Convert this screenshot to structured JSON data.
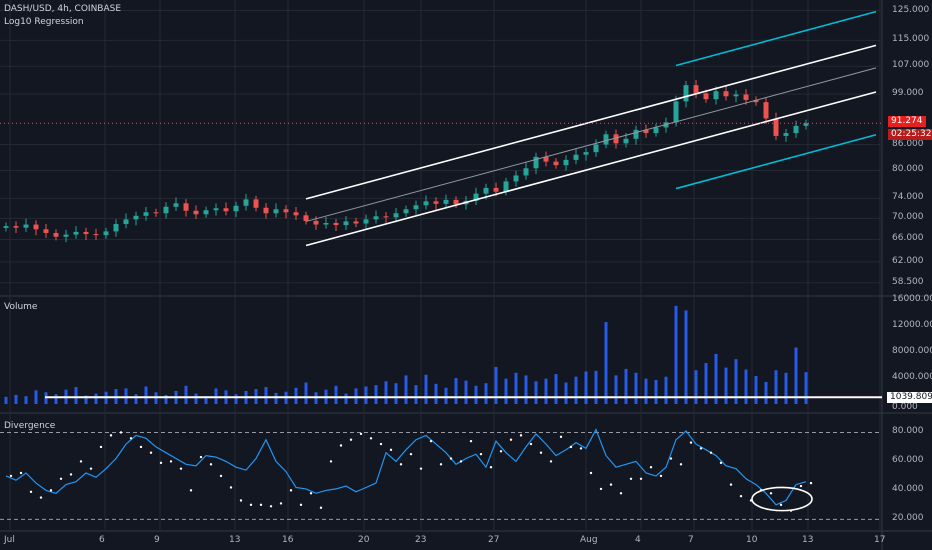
{
  "header": {
    "symbol_line": "DASH/USD, 4h, COINBASE",
    "indicator": "Log10 Regression"
  },
  "colors": {
    "background": "#131722",
    "grid": "#242832",
    "up": "#26a69a",
    "down": "#ef5350",
    "channel_inner": "#ffffff",
    "channel_outer": "#00bcd4",
    "volume": "#2962ff",
    "divergence": "#2196f3",
    "dots": "#ffffff",
    "badge_red": "#e52020"
  },
  "panes": {
    "volume_title": "Volume",
    "divergence_title": "Divergence"
  },
  "price_badges": {
    "last_price": "91.274",
    "countdown": "02:25:32"
  },
  "volume_badge": "1039.809",
  "chart_data": [
    {
      "type": "candlestick",
      "title": "DASH/USD, 4h, COINBASE",
      "y_scale": "log",
      "y_ticks": [
        "125.000",
        "115.000",
        "107.000",
        "99.000",
        "91.274",
        "86.000",
        "80.000",
        "74.000",
        "70.000",
        "66.000",
        "62.000",
        "58.500"
      ],
      "x_ticks": [
        "Jul",
        "6",
        "9",
        "13",
        "16",
        "20",
        "23",
        "27",
        "Aug",
        "4",
        "7",
        "10",
        "13",
        "17"
      ],
      "ylim": [
        57,
        128
      ],
      "close_path": [
        [
          0,
          68.5
        ],
        [
          1,
          68.2
        ],
        [
          2,
          68.8
        ],
        [
          3,
          67.9
        ],
        [
          4,
          67.2
        ],
        [
          5,
          66.5
        ],
        [
          6,
          66.9
        ],
        [
          7,
          67.4
        ],
        [
          8,
          67.0
        ],
        [
          9,
          66.8
        ],
        [
          10,
          67.5
        ],
        [
          11,
          68.9
        ],
        [
          12,
          69.8
        ],
        [
          13,
          70.5
        ],
        [
          14,
          71.2
        ],
        [
          15,
          71.0
        ],
        [
          16,
          72.3
        ],
        [
          17,
          73.0
        ],
        [
          18,
          71.5
        ],
        [
          19,
          70.8
        ],
        [
          20,
          71.6
        ],
        [
          21,
          72.0
        ],
        [
          22,
          71.4
        ],
        [
          23,
          72.5
        ],
        [
          24,
          73.8
        ],
        [
          25,
          72.1
        ],
        [
          26,
          71.0
        ],
        [
          27,
          71.8
        ],
        [
          28,
          71.2
        ],
        [
          29,
          70.6
        ],
        [
          30,
          69.5
        ],
        [
          31,
          68.8
        ],
        [
          32,
          69.1
        ],
        [
          33,
          68.7
        ],
        [
          34,
          69.4
        ],
        [
          35,
          69.0
        ],
        [
          36,
          69.8
        ],
        [
          37,
          70.4
        ],
        [
          38,
          70.2
        ],
        [
          39,
          71.0
        ],
        [
          40,
          71.8
        ],
        [
          41,
          72.6
        ],
        [
          42,
          73.4
        ],
        [
          43,
          72.9
        ],
        [
          44,
          73.7
        ],
        [
          45,
          72.8
        ],
        [
          46,
          73.5
        ],
        [
          47,
          75.0
        ],
        [
          48,
          76.2
        ],
        [
          49,
          75.4
        ],
        [
          50,
          77.6
        ],
        [
          51,
          78.9
        ],
        [
          52,
          80.5
        ],
        [
          53,
          83.1
        ],
        [
          54,
          82.0
        ],
        [
          55,
          81.2
        ],
        [
          56,
          82.4
        ],
        [
          57,
          83.6
        ],
        [
          58,
          84.2
        ],
        [
          59,
          86.0
        ],
        [
          60,
          88.5
        ],
        [
          61,
          86.3
        ],
        [
          62,
          87.4
        ],
        [
          63,
          89.6
        ],
        [
          64,
          88.8
        ],
        [
          65,
          90.2
        ],
        [
          66,
          91.5
        ],
        [
          67,
          97.0
        ],
        [
          68,
          101.5
        ],
        [
          69,
          99.2
        ],
        [
          70,
          97.6
        ],
        [
          71,
          99.8
        ],
        [
          72,
          98.4
        ],
        [
          73,
          98.9
        ],
        [
          74,
          97.4
        ],
        [
          75,
          96.8
        ],
        [
          76,
          92.5
        ],
        [
          77,
          88.1
        ],
        [
          78,
          88.8
        ],
        [
          79,
          90.6
        ],
        [
          80,
          91.274
        ]
      ],
      "regression_channel": {
        "x_start": 30,
        "x_end": 87,
        "center_start": 69.4,
        "center_end": 106.5,
        "inner_offsets_pct": [
          6.5,
          -6.5
        ],
        "outer_offsets_pct": [
          17.0,
          -17.0
        ]
      }
    },
    {
      "type": "bar",
      "title": "Volume",
      "y_ticks": [
        "16000.000",
        "12000.000",
        "8000.000",
        "4000.000",
        "0.000"
      ],
      "ylim": [
        0,
        16000
      ],
      "average_line": 1039.809,
      "values": [
        1100,
        1400,
        1200,
        2100,
        1800,
        1500,
        2200,
        2600,
        1300,
        1600,
        1900,
        2300,
        2400,
        1500,
        2700,
        1800,
        1400,
        2000,
        2800,
        1600,
        1200,
        2400,
        2100,
        1500,
        2000,
        2300,
        2600,
        1700,
        1900,
        2500,
        3300,
        1800,
        2200,
        2800,
        1600,
        2400,
        2700,
        2900,
        3500,
        3200,
        4400,
        2900,
        4500,
        3100,
        2500,
        4000,
        3600,
        2800,
        3200,
        5700,
        3900,
        4800,
        4400,
        3500,
        3900,
        4600,
        3300,
        4200,
        5000,
        5100,
        12600,
        4400,
        5400,
        4800,
        3900,
        3700,
        4200,
        15100,
        14400,
        5200,
        6300,
        7700,
        5600,
        6900,
        5300,
        4300,
        3400,
        5200,
        4800,
        8700,
        4900
      ]
    },
    {
      "type": "line",
      "title": "Divergence",
      "y_ticks": [
        "80.000",
        "60.000",
        "40.000",
        "20.000"
      ],
      "ylim": [
        14,
        90
      ],
      "bands": [
        80,
        20
      ],
      "values": [
        50,
        47,
        52,
        45,
        40,
        38,
        44,
        46,
        52,
        49,
        55,
        62,
        72,
        78,
        76,
        70,
        66,
        62,
        58,
        57,
        64,
        63,
        60,
        56,
        54,
        62,
        75,
        60,
        53,
        42,
        41,
        38,
        40,
        41,
        43,
        39,
        42,
        45,
        66,
        60,
        68,
        75,
        78,
        72,
        66,
        58,
        62,
        65,
        56,
        74,
        66,
        60,
        70,
        79,
        72,
        64,
        68,
        73,
        69,
        82,
        64,
        56,
        58,
        60,
        52,
        50,
        56,
        75,
        81,
        72,
        68,
        64,
        57,
        55,
        48,
        44,
        38,
        30,
        33,
        44,
        46
      ],
      "dots": [
        50,
        52,
        39,
        35,
        40,
        48,
        51,
        60,
        55,
        70,
        78,
        80,
        76,
        70,
        66,
        59,
        60,
        55,
        40,
        63,
        58,
        50,
        42,
        33,
        30,
        30,
        29,
        31,
        40,
        30,
        38,
        28,
        60,
        71,
        75,
        79,
        76,
        72,
        68,
        58,
        65,
        55,
        74,
        58,
        62,
        60,
        74,
        65,
        56,
        67,
        75,
        78,
        72,
        66,
        60,
        77,
        70,
        69,
        52,
        41,
        44,
        38,
        48,
        48,
        56,
        50,
        62,
        58,
        73,
        69,
        66,
        59,
        44,
        36,
        33,
        40,
        38,
        30,
        26,
        43,
        45
      ],
      "highlight_ellipse": {
        "x_center": 77.6,
        "y_center": 34,
        "x_radius": 3.0,
        "y_radius": 8
      }
    }
  ]
}
